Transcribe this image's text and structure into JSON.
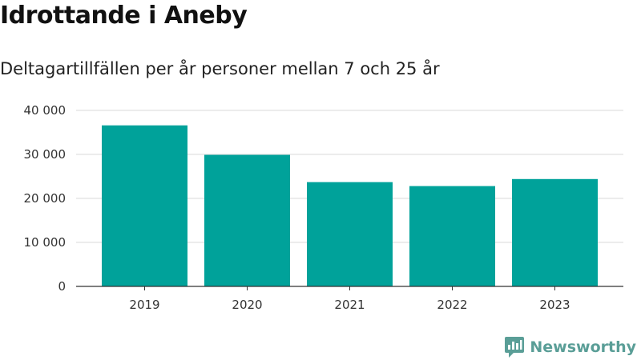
{
  "header": {
    "title": "Idrottande i Aneby",
    "subtitle": "Deltagartillfällen per år personer mellan 7 och 25 år"
  },
  "brand": {
    "name": "Newsworthy",
    "logo_icon": "newsworthy-logo-icon",
    "color": "#5a9e97"
  },
  "chart_data": {
    "type": "bar",
    "title": "Idrottande i Aneby",
    "subtitle": "Deltagartillfällen per år personer mellan 7 och 25 år",
    "categories": [
      "2019",
      "2020",
      "2021",
      "2022",
      "2023"
    ],
    "values": [
      36600,
      29900,
      23700,
      22800,
      24400
    ],
    "xlabel": "",
    "ylabel": "",
    "ylim": [
      0,
      40000
    ],
    "yticks": [
      0,
      10000,
      20000,
      30000,
      40000
    ],
    "ytick_labels": [
      "0",
      "10 000",
      "20 000",
      "30 000",
      "40 000"
    ],
    "grid": true,
    "legend": "none",
    "bar_color": "#00a29a"
  }
}
